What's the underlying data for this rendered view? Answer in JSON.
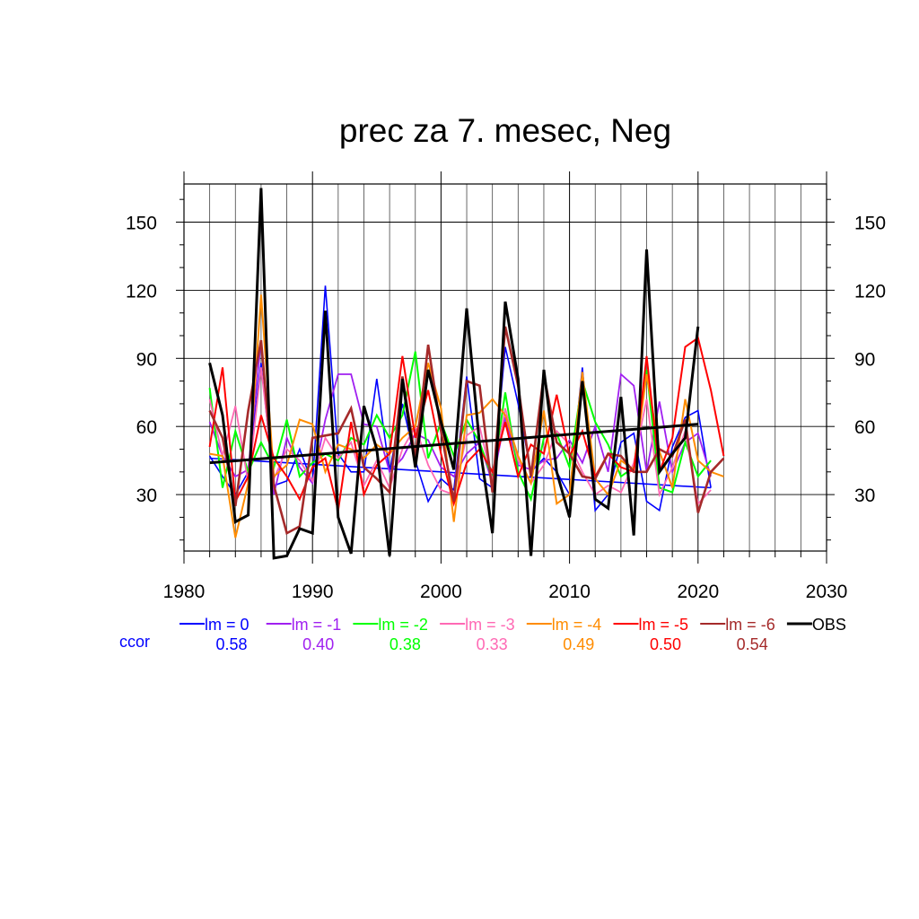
{
  "chart_data": {
    "type": "line",
    "title": "prec za 7. mesec, Neg",
    "xlabel": "",
    "ylabel": "",
    "xlim": [
      1980,
      2030
    ],
    "ylim": [
      0,
      166
    ],
    "x_ticks": [
      1980,
      1990,
      2000,
      2010,
      2020,
      2030
    ],
    "y_ticks": [
      30,
      60,
      90,
      120,
      150
    ],
    "grid": true,
    "years": [
      1982,
      1983,
      1984,
      1985,
      1986,
      1987,
      1988,
      1989,
      1990,
      1991,
      1992,
      1993,
      1994,
      1995,
      1996,
      1997,
      1998,
      1999,
      2000,
      2001,
      2002,
      2003,
      2004,
      2005,
      2006,
      2007,
      2008,
      2009,
      2010,
      2011,
      2012,
      2013,
      2014,
      2015,
      2016,
      2017,
      2018,
      2019,
      2020,
      2021,
      2022
    ],
    "series": [
      {
        "name": "lm = 0",
        "color": "#0000ff",
        "width": 1.6,
        "values": [
          47,
          38,
          30,
          40,
          88,
          34,
          36,
          50,
          35,
          122,
          48,
          40,
          40,
          81,
          40,
          70,
          45,
          27,
          37,
          32,
          82,
          37,
          33,
          95,
          70,
          40,
          46,
          40,
          30,
          86,
          23,
          30,
          53,
          57,
          27,
          23,
          51,
          64,
          67,
          33,
          null
        ],
        "trend": [
          46,
          33
        ]
      },
      {
        "name": "lm = -1",
        "color": "#a020f0",
        "width": 1.8,
        "values": [
          62,
          47,
          38,
          41,
          98,
          30,
          55,
          42,
          35,
          63,
          83,
          83,
          61,
          60,
          40,
          46,
          57,
          54,
          42,
          38,
          48,
          53,
          35,
          64,
          43,
          41,
          45,
          46,
          54,
          44,
          60,
          40,
          83,
          78,
          40,
          71,
          40,
          53,
          57,
          38,
          null
        ]
      },
      {
        "name": "lm = -2",
        "color": "#00ff00",
        "width": 2,
        "values": [
          77,
          33,
          58,
          40,
          53,
          42,
          63,
          38,
          44,
          48,
          45,
          55,
          52,
          65,
          55,
          65,
          93,
          46,
          62,
          47,
          63,
          53,
          37,
          75,
          40,
          28,
          55,
          57,
          42,
          80,
          62,
          52,
          38,
          42,
          85,
          33,
          31,
          53,
          38,
          45,
          null
        ]
      },
      {
        "name": "lm = -3",
        "color": "#ff69b4",
        "width": 1.8,
        "values": [
          72,
          47,
          69,
          35,
          86,
          37,
          50,
          45,
          36,
          55,
          46,
          53,
          34,
          45,
          33,
          50,
          60,
          43,
          32,
          30,
          56,
          60,
          36,
          68,
          45,
          35,
          43,
          58,
          52,
          40,
          30,
          34,
          31,
          44,
          72,
          30,
          42,
          58,
          26,
          32,
          null
        ]
      },
      {
        "name": "lm = -4",
        "color": "#ff8c00",
        "width": 2,
        "values": [
          48,
          47,
          11,
          35,
          118,
          38,
          43,
          63,
          61,
          40,
          52,
          50,
          46,
          52,
          48,
          55,
          60,
          88,
          68,
          18,
          65,
          66,
          72,
          65,
          47,
          35,
          67,
          26,
          30,
          84,
          37,
          30,
          45,
          41,
          83,
          49,
          33,
          72,
          45,
          40,
          38
        ]
      },
      {
        "name": "lm = -5",
        "color": "#ff0000",
        "width": 2,
        "values": [
          51,
          86,
          27,
          38,
          65,
          46,
          38,
          28,
          42,
          46,
          23,
          62,
          30,
          43,
          48,
          91,
          55,
          76,
          48,
          26,
          44,
          50,
          40,
          62,
          38,
          52,
          48,
          74,
          47,
          58,
          38,
          48,
          42,
          40,
          91,
          40,
          55,
          95,
          99,
          76,
          47
        ]
      },
      {
        "name": "lm = -6",
        "color": "#a52a2a",
        "width": 2.6,
        "values": [
          67,
          55,
          25,
          67,
          98,
          34,
          13,
          16,
          55,
          56,
          57,
          68,
          42,
          37,
          31,
          82,
          46,
          96,
          58,
          27,
          80,
          78,
          31,
          104,
          78,
          38,
          83,
          53,
          48,
          38,
          37,
          48,
          47,
          40,
          40,
          50,
          47,
          63,
          22,
          40,
          46
        ]
      },
      {
        "name": "OBS",
        "color": "#000000",
        "width": 3,
        "values": [
          88,
          65,
          18,
          21,
          165,
          2,
          3,
          15,
          13,
          111,
          20,
          4,
          69,
          50,
          3,
          81,
          42,
          85,
          62,
          41,
          112,
          52,
          13,
          115,
          81,
          3,
          85,
          40,
          20,
          80,
          28,
          24,
          73,
          12,
          138,
          40,
          48,
          55,
          104,
          null,
          null
        ],
        "trend": [
          44,
          61
        ]
      }
    ],
    "legend": {
      "label": "ccor",
      "entries": [
        {
          "name": "lm = 0",
          "value": "0.58",
          "color": "#0000ff"
        },
        {
          "name": "lm = -1",
          "value": "0.40",
          "color": "#a020f0"
        },
        {
          "name": "lm = -2",
          "value": "0.38",
          "color": "#00ff00"
        },
        {
          "name": "lm = -3",
          "value": "0.33",
          "color": "#ff69b4"
        },
        {
          "name": "lm = -4",
          "value": "0.49",
          "color": "#ff8c00"
        },
        {
          "name": "lm = -5",
          "value": "0.50",
          "color": "#ff0000"
        },
        {
          "name": "lm = -6",
          "value": "0.54",
          "color": "#a52a2a"
        },
        {
          "name": "OBS",
          "value": "",
          "color": "#000000"
        }
      ]
    }
  }
}
